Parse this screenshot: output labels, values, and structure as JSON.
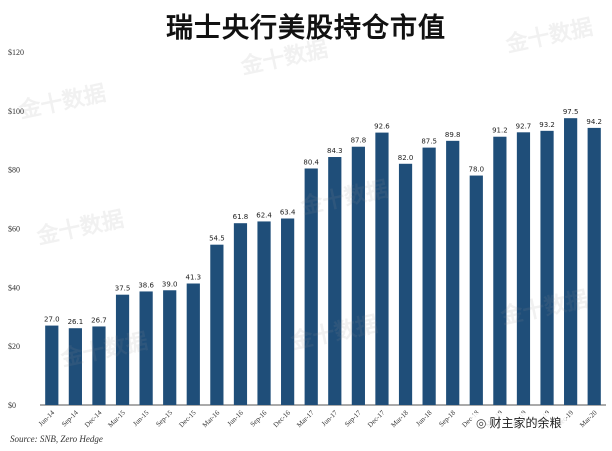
{
  "chart_data": {
    "type": "bar",
    "title": "瑞士央行美股持仓市值",
    "categories": [
      "Jun-14",
      "Sep-14",
      "Dec-14",
      "Mar-15",
      "Jun-15",
      "Sep-15",
      "Dec-15",
      "Mar-16",
      "Jun-16",
      "Sep-16",
      "Dec-16",
      "Mar-17",
      "Jun-17",
      "Sep-17",
      "Dec-17",
      "Mar-18",
      "Jun-18",
      "Sep-18",
      "Dec-18",
      "Mar-19",
      "Jun-19",
      "Sep-19",
      "Dec-19",
      "Mar-20"
    ],
    "values": [
      27.0,
      26.1,
      26.7,
      37.5,
      38.6,
      39.0,
      41.3,
      54.5,
      61.8,
      62.4,
      63.4,
      80.4,
      84.3,
      87.8,
      92.6,
      82.0,
      87.5,
      89.8,
      78.0,
      91.2,
      92.7,
      93.2,
      97.5,
      94.2
    ],
    "data_labels": [
      "27.0",
      "26.1",
      "26.7",
      "37.5",
      "38.6",
      "39.0",
      "41.3",
      "54.5",
      "61.8",
      "62.4",
      "63.4",
      "80.4",
      "84.3",
      "87.8",
      "92.6",
      "82.0",
      "87.5",
      "89.8",
      "78.0",
      "91.2",
      "92.7",
      "93.2",
      "97.5",
      "94.2"
    ],
    "yticks": [
      "$0",
      "$20",
      "$40",
      "$60",
      "$80",
      "$100",
      "$120"
    ],
    "ylim": [
      0,
      120
    ],
    "xlabel": "",
    "ylabel": "",
    "grid": false,
    "bar_color": "#1f4e79"
  },
  "source": "Source: SNB, Zero Hedge",
  "watermark_text": "金十数据",
  "wechat_label": "财主家的余粮"
}
